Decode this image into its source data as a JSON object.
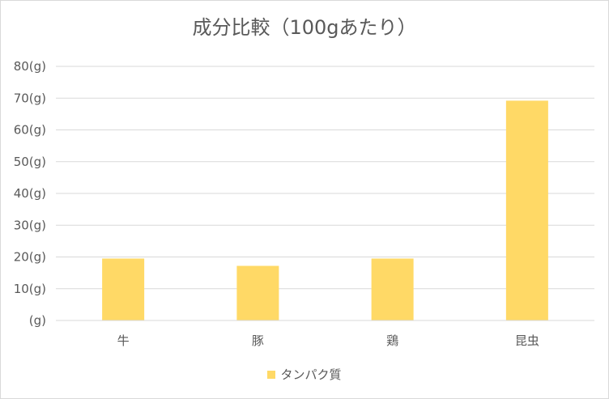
{
  "chart_data": {
    "type": "bar",
    "title": "成分比較（100gあたり）",
    "categories": [
      "牛",
      "豚",
      "鶏",
      "昆虫"
    ],
    "series": [
      {
        "name": "タンパク質",
        "values": [
          19.5,
          17.2,
          19.5,
          69.2
        ],
        "color": "#ffd966"
      }
    ],
    "y_ticks": [
      "(g)",
      "10(g)",
      "20(g)",
      "30(g)",
      "40(g)",
      "50(g)",
      "60(g)",
      "70(g)",
      "80(g)"
    ],
    "ylim": [
      0,
      80
    ],
    "grid": true,
    "legend_position": "bottom"
  }
}
